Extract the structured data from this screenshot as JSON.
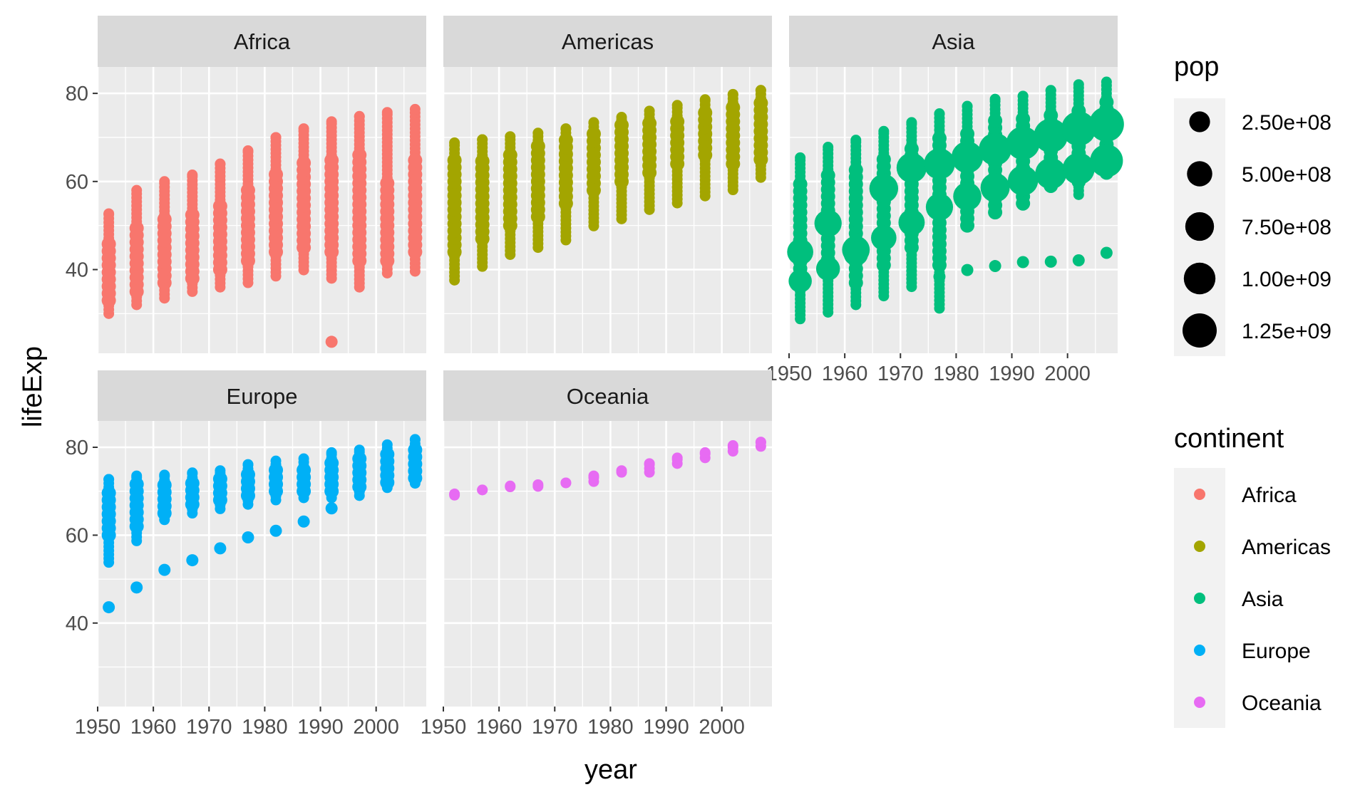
{
  "chart_data": {
    "type": "scatter",
    "facet_by": "continent",
    "panels": [
      "Africa",
      "Americas",
      "Asia",
      "Europe",
      "Oceania"
    ],
    "xlabel": "year",
    "ylabel": "lifeExp",
    "x_ticks": [
      1950,
      1960,
      1970,
      1980,
      1990,
      2000
    ],
    "y_ticks": [
      40,
      60,
      80
    ],
    "xlim": [
      1950,
      2009
    ],
    "ylim": [
      21,
      86
    ],
    "grid": true,
    "legends": {
      "pop": {
        "title": "pop",
        "labels": [
          "2.50e+08",
          "5.00e+08",
          "7.50e+08",
          "1.00e+09",
          "1.25e+09"
        ],
        "values": [
          250000000,
          500000000,
          750000000,
          1000000000,
          1250000000
        ]
      },
      "continent": {
        "title": "continent",
        "labels": [
          "Africa",
          "Americas",
          "Asia",
          "Europe",
          "Oceania"
        ],
        "colors": [
          "#F8766D",
          "#A3A500",
          "#00BF7D",
          "#00B0F6",
          "#E76BF3"
        ]
      }
    },
    "series": [
      {
        "name": "Africa",
        "color": "#F8766D",
        "data": [
          {
            "year": 1952,
            "min": 30,
            "max": 52.7,
            "band": [
              33,
              47
            ],
            "extras": []
          },
          {
            "year": 1957,
            "min": 32,
            "max": 58,
            "band": [
              35,
              50
            ],
            "extras": []
          },
          {
            "year": 1962,
            "min": 33.5,
            "max": 60,
            "band": [
              37,
              52
            ],
            "extras": []
          },
          {
            "year": 1967,
            "min": 35,
            "max": 61.5,
            "band": [
              38,
              54
            ],
            "extras": []
          },
          {
            "year": 1972,
            "min": 36,
            "max": 64,
            "band": [
              40,
              56
            ],
            "extras": []
          },
          {
            "year": 1977,
            "min": 37,
            "max": 67,
            "band": [
              42,
              59
            ],
            "extras": []
          },
          {
            "year": 1982,
            "min": 38.5,
            "max": 70,
            "band": [
              44,
              62
            ],
            "extras": []
          },
          {
            "year": 1987,
            "min": 39.9,
            "max": 72,
            "band": [
              45,
              65
            ],
            "extras": []
          },
          {
            "year": 1992,
            "min": 38,
            "max": 73.6,
            "band": [
              44,
              66
            ],
            "extras": [
              23.6
            ]
          },
          {
            "year": 1997,
            "min": 36,
            "max": 74.8,
            "band": [
              42,
              67
            ],
            "extras": []
          },
          {
            "year": 2002,
            "min": 39.2,
            "max": 75.7,
            "band": [
              42,
              60
            ],
            "extras": []
          },
          {
            "year": 2007,
            "min": 39.6,
            "max": 76.4,
            "band": [
              44,
              66
            ],
            "extras": []
          }
        ]
      },
      {
        "name": "Americas",
        "color": "#A3A500",
        "data": [
          {
            "year": 1952,
            "min": 37.6,
            "max": 68.8,
            "band": [
              44,
              65
            ],
            "extras": []
          },
          {
            "year": 1957,
            "min": 40.7,
            "max": 69.5,
            "band": [
              47,
              66
            ],
            "extras": []
          },
          {
            "year": 1962,
            "min": 43.4,
            "max": 70.2,
            "band": [
              50,
              67
            ],
            "extras": []
          },
          {
            "year": 1967,
            "min": 45.0,
            "max": 71.0,
            "band": [
              52,
              68
            ],
            "extras": []
          },
          {
            "year": 1972,
            "min": 46.7,
            "max": 72.0,
            "band": [
              55,
              70
            ],
            "extras": []
          },
          {
            "year": 1977,
            "min": 49.9,
            "max": 73.4,
            "band": [
              58,
              71
            ],
            "extras": []
          },
          {
            "year": 1982,
            "min": 51.5,
            "max": 74.6,
            "band": [
              60,
              73
            ],
            "extras": []
          },
          {
            "year": 1987,
            "min": 53.6,
            "max": 76.0,
            "band": [
              62,
              74
            ],
            "extras": []
          },
          {
            "year": 1992,
            "min": 55.1,
            "max": 77.3,
            "band": [
              64,
              75
            ],
            "extras": []
          },
          {
            "year": 1997,
            "min": 56.7,
            "max": 78.6,
            "band": [
              66,
              77
            ],
            "extras": []
          },
          {
            "year": 2002,
            "min": 58.1,
            "max": 79.8,
            "band": [
              64,
              78
            ],
            "extras": []
          },
          {
            "year": 2007,
            "min": 60.9,
            "max": 80.7,
            "band": [
              65,
              79
            ],
            "extras": []
          }
        ]
      },
      {
        "name": "Asia",
        "color": "#00BF7D",
        "data": [
          {
            "year": 1952,
            "min": 28.8,
            "max": 65.4,
            "band": [
              37,
              60
            ],
            "extras": []
          },
          {
            "year": 1957,
            "min": 30.3,
            "max": 67.8,
            "band": [
              39,
              62
            ],
            "extras": []
          },
          {
            "year": 1962,
            "min": 32.0,
            "max": 69.4,
            "band": [
              37,
              64
            ],
            "extras": []
          },
          {
            "year": 1967,
            "min": 34.0,
            "max": 71.4,
            "band": [
              41,
              66
            ],
            "extras": []
          },
          {
            "year": 1972,
            "min": 36.1,
            "max": 73.4,
            "band": [
              45,
              68
            ],
            "extras": []
          },
          {
            "year": 1977,
            "min": 31.2,
            "max": 75.4,
            "band": [
              41,
              70
            ],
            "extras": [
              38.4
            ]
          },
          {
            "year": 1982,
            "min": 50,
            "max": 77.1,
            "band": [
              50,
              72
            ],
            "extras": [
              39.9
            ]
          },
          {
            "year": 1987,
            "min": 53,
            "max": 78.7,
            "band": [
              53,
              74
            ],
            "extras": [
              40.8
            ]
          },
          {
            "year": 1992,
            "min": 55,
            "max": 79.4,
            "band": [
              55,
              75
            ],
            "extras": [
              41.7
            ]
          },
          {
            "year": 1997,
            "min": 59,
            "max": 80.7,
            "band": [
              59,
              76
            ],
            "extras": [
              41.8
            ]
          },
          {
            "year": 2002,
            "min": 57,
            "max": 82.0,
            "band": [
              60,
              77
            ],
            "extras": [
              42.1
            ]
          },
          {
            "year": 2007,
            "min": 62,
            "max": 82.6,
            "band": [
              62,
              78
            ],
            "extras": [
              43.8
            ]
          }
        ],
        "large_points": [
          {
            "year": 1952,
            "lifeExp": 44.0,
            "pop": 556000000
          },
          {
            "year": 1952,
            "lifeExp": 37.4,
            "pop": 372000000
          },
          {
            "year": 1957,
            "lifeExp": 50.5,
            "pop": 637000000
          },
          {
            "year": 1957,
            "lifeExp": 40.2,
            "pop": 409000000
          },
          {
            "year": 1962,
            "lifeExp": 44.5,
            "pop": 665000000
          },
          {
            "year": 1962,
            "lifeExp": 43.6,
            "pop": 454000000
          },
          {
            "year": 1967,
            "lifeExp": 58.4,
            "pop": 754000000
          },
          {
            "year": 1967,
            "lifeExp": 47.2,
            "pop": 506000000
          },
          {
            "year": 1972,
            "lifeExp": 63.1,
            "pop": 862000000
          },
          {
            "year": 1972,
            "lifeExp": 50.7,
            "pop": 567000000
          },
          {
            "year": 1977,
            "lifeExp": 64.0,
            "pop": 943000000
          },
          {
            "year": 1977,
            "lifeExp": 54.2,
            "pop": 634000000
          },
          {
            "year": 1982,
            "lifeExp": 65.5,
            "pop": 1000000000
          },
          {
            "year": 1982,
            "lifeExp": 56.6,
            "pop": 708000000
          },
          {
            "year": 1987,
            "lifeExp": 67.3,
            "pop": 1084000000
          },
          {
            "year": 1987,
            "lifeExp": 58.6,
            "pop": 788000000
          },
          {
            "year": 1992,
            "lifeExp": 68.7,
            "pop": 1165000000
          },
          {
            "year": 1992,
            "lifeExp": 60.2,
            "pop": 872000000
          },
          {
            "year": 1997,
            "lifeExp": 70.4,
            "pop": 1230000000
          },
          {
            "year": 1997,
            "lifeExp": 61.8,
            "pop": 959000000
          },
          {
            "year": 2002,
            "lifeExp": 72.0,
            "pop": 1280000000
          },
          {
            "year": 2002,
            "lifeExp": 62.9,
            "pop": 1034000000
          },
          {
            "year": 2007,
            "lifeExp": 73.0,
            "pop": 1318000000
          },
          {
            "year": 2007,
            "lifeExp": 64.7,
            "pop": 1110000000
          }
        ]
      },
      {
        "name": "Europe",
        "color": "#00B0F6",
        "data": [
          {
            "year": 1952,
            "min": 53.8,
            "max": 72.7,
            "band": [
              60,
              71
            ],
            "extras": [
              43.6
            ]
          },
          {
            "year": 1957,
            "min": 58.7,
            "max": 73.5,
            "band": [
              62,
              72
            ],
            "extras": [
              48.1
            ]
          },
          {
            "year": 1962,
            "min": 63.5,
            "max": 73.7,
            "band": [
              65,
              72.5
            ],
            "extras": [
              52.1
            ]
          },
          {
            "year": 1967,
            "min": 65,
            "max": 74.2,
            "band": [
              67,
              73
            ],
            "extras": [
              54.3
            ]
          },
          {
            "year": 1972,
            "min": 66,
            "max": 74.7,
            "band": [
              68,
              73.5
            ],
            "extras": [
              57.0
            ]
          },
          {
            "year": 1977,
            "min": 67,
            "max": 76.1,
            "band": [
              69,
              74.5
            ],
            "extras": [
              59.5
            ]
          },
          {
            "year": 1982,
            "min": 68,
            "max": 76.9,
            "band": [
              70,
              75
            ],
            "extras": [
              61.0
            ]
          },
          {
            "year": 1987,
            "min": 68.5,
            "max": 77.4,
            "band": [
              70,
              76
            ],
            "extras": [
              63.1
            ]
          },
          {
            "year": 1992,
            "min": 68.5,
            "max": 78.8,
            "band": [
              70,
              77
            ],
            "extras": [
              66.1
            ]
          },
          {
            "year": 1997,
            "min": 69,
            "max": 79.4,
            "band": [
              71,
              78
            ],
            "extras": []
          },
          {
            "year": 2002,
            "min": 70.8,
            "max": 80.6,
            "band": [
              72,
              79
            ],
            "extras": []
          },
          {
            "year": 2007,
            "min": 71.8,
            "max": 81.8,
            "band": [
              73,
              80
            ],
            "extras": []
          }
        ]
      },
      {
        "name": "Oceania",
        "color": "#E76BF3",
        "data": [
          {
            "year": 1952,
            "min": 69.1,
            "max": 69.4,
            "band": [],
            "extras": []
          },
          {
            "year": 1957,
            "min": 70.3,
            "max": 70.3,
            "band": [],
            "extras": []
          },
          {
            "year": 1962,
            "min": 71.0,
            "max": 71.2,
            "band": [],
            "extras": []
          },
          {
            "year": 1967,
            "min": 71.1,
            "max": 71.5,
            "band": [],
            "extras": []
          },
          {
            "year": 1972,
            "min": 71.9,
            "max": 71.9,
            "band": [],
            "extras": []
          },
          {
            "year": 1977,
            "min": 72.2,
            "max": 73.5,
            "band": [],
            "extras": []
          },
          {
            "year": 1982,
            "min": 74.3,
            "max": 74.7,
            "band": [],
            "extras": []
          },
          {
            "year": 1987,
            "min": 74.3,
            "max": 76.3,
            "band": [],
            "extras": []
          },
          {
            "year": 1992,
            "min": 76.3,
            "max": 77.6,
            "band": [],
            "extras": []
          },
          {
            "year": 1997,
            "min": 77.6,
            "max": 78.8,
            "band": [],
            "extras": []
          },
          {
            "year": 2002,
            "min": 79.1,
            "max": 80.4,
            "band": [],
            "extras": []
          },
          {
            "year": 2007,
            "min": 80.2,
            "max": 81.2,
            "band": [],
            "extras": []
          }
        ]
      }
    ]
  }
}
